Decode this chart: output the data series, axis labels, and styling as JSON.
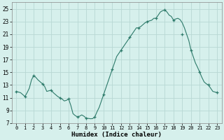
{
  "title": "",
  "xlabel": "Humidex (Indice chaleur)",
  "ylabel": "",
  "background_color": "#d6f0ec",
  "grid_color": "#b8d8d4",
  "line_color": "#2d7a6a",
  "marker_color": "#2d7a6a",
  "xlim": [
    -0.5,
    23.5
  ],
  "ylim": [
    7,
    26
  ],
  "yticks": [
    7,
    9,
    11,
    13,
    15,
    17,
    19,
    21,
    23,
    25
  ],
  "xticks": [
    0,
    1,
    2,
    3,
    4,
    5,
    6,
    7,
    8,
    9,
    10,
    11,
    12,
    13,
    14,
    15,
    16,
    17,
    18,
    19,
    20,
    21,
    22,
    23
  ],
  "x": [
    0,
    0.25,
    0.5,
    0.75,
    1,
    1.25,
    1.5,
    1.75,
    2,
    2.25,
    2.5,
    2.75,
    3,
    3.25,
    3.5,
    3.75,
    4,
    4.25,
    4.5,
    4.75,
    5,
    5.25,
    5.5,
    5.75,
    6,
    6.25,
    6.5,
    6.75,
    7,
    7.25,
    7.5,
    7.75,
    8,
    8.25,
    8.5,
    8.75,
    9,
    9.25,
    9.5,
    9.75,
    10,
    10.25,
    10.5,
    10.75,
    11,
    11.25,
    11.5,
    11.75,
    12,
    12.25,
    12.5,
    12.75,
    13,
    13.25,
    13.5,
    13.75,
    14,
    14.25,
    14.5,
    14.75,
    15,
    15.25,
    15.5,
    15.75,
    16,
    16.25,
    16.5,
    16.75,
    17,
    17.25,
    17.5,
    17.75,
    18,
    18.25,
    18.5,
    18.75,
    19,
    19.25,
    19.5,
    19.75,
    20,
    20.25,
    20.5,
    20.75,
    21,
    21.25,
    21.5,
    21.75,
    22,
    22.25,
    22.5,
    22.75,
    23
  ],
  "y": [
    12.0,
    11.9,
    11.8,
    11.5,
    11.2,
    11.8,
    12.5,
    13.8,
    14.5,
    14.2,
    13.8,
    13.5,
    13.2,
    12.8,
    12.0,
    12.1,
    12.2,
    11.8,
    11.5,
    11.2,
    11.0,
    10.8,
    10.5,
    10.6,
    10.8,
    9.8,
    8.5,
    8.2,
    8.0,
    8.1,
    8.3,
    8.1,
    7.8,
    7.75,
    7.7,
    7.72,
    8.0,
    8.8,
    9.5,
    10.5,
    11.5,
    12.5,
    13.5,
    14.5,
    15.5,
    16.5,
    17.5,
    18.0,
    18.5,
    19.0,
    19.5,
    20.0,
    20.5,
    21.0,
    21.5,
    22.0,
    22.0,
    22.2,
    22.5,
    22.8,
    23.0,
    23.1,
    23.2,
    23.5,
    23.5,
    24.0,
    24.5,
    24.7,
    24.8,
    24.5,
    24.0,
    23.8,
    23.2,
    23.4,
    23.5,
    23.3,
    22.8,
    22.0,
    21.0,
    20.0,
    18.5,
    17.5,
    16.5,
    15.8,
    15.0,
    14.2,
    13.5,
    13.2,
    13.0,
    12.5,
    12.0,
    11.9,
    11.8
  ],
  "marker_x": [
    0,
    1,
    2,
    3,
    4,
    5,
    6,
    7,
    8,
    9,
    10,
    11,
    12,
    13,
    14,
    15,
    16,
    17,
    18,
    19,
    20,
    21,
    22,
    23
  ],
  "marker_y": [
    12.0,
    11.2,
    14.5,
    13.2,
    12.2,
    11.0,
    10.8,
    8.0,
    7.8,
    8.0,
    11.5,
    15.5,
    18.5,
    20.5,
    22.0,
    23.0,
    23.5,
    24.8,
    23.2,
    21.0,
    18.5,
    15.0,
    13.0,
    11.8
  ]
}
